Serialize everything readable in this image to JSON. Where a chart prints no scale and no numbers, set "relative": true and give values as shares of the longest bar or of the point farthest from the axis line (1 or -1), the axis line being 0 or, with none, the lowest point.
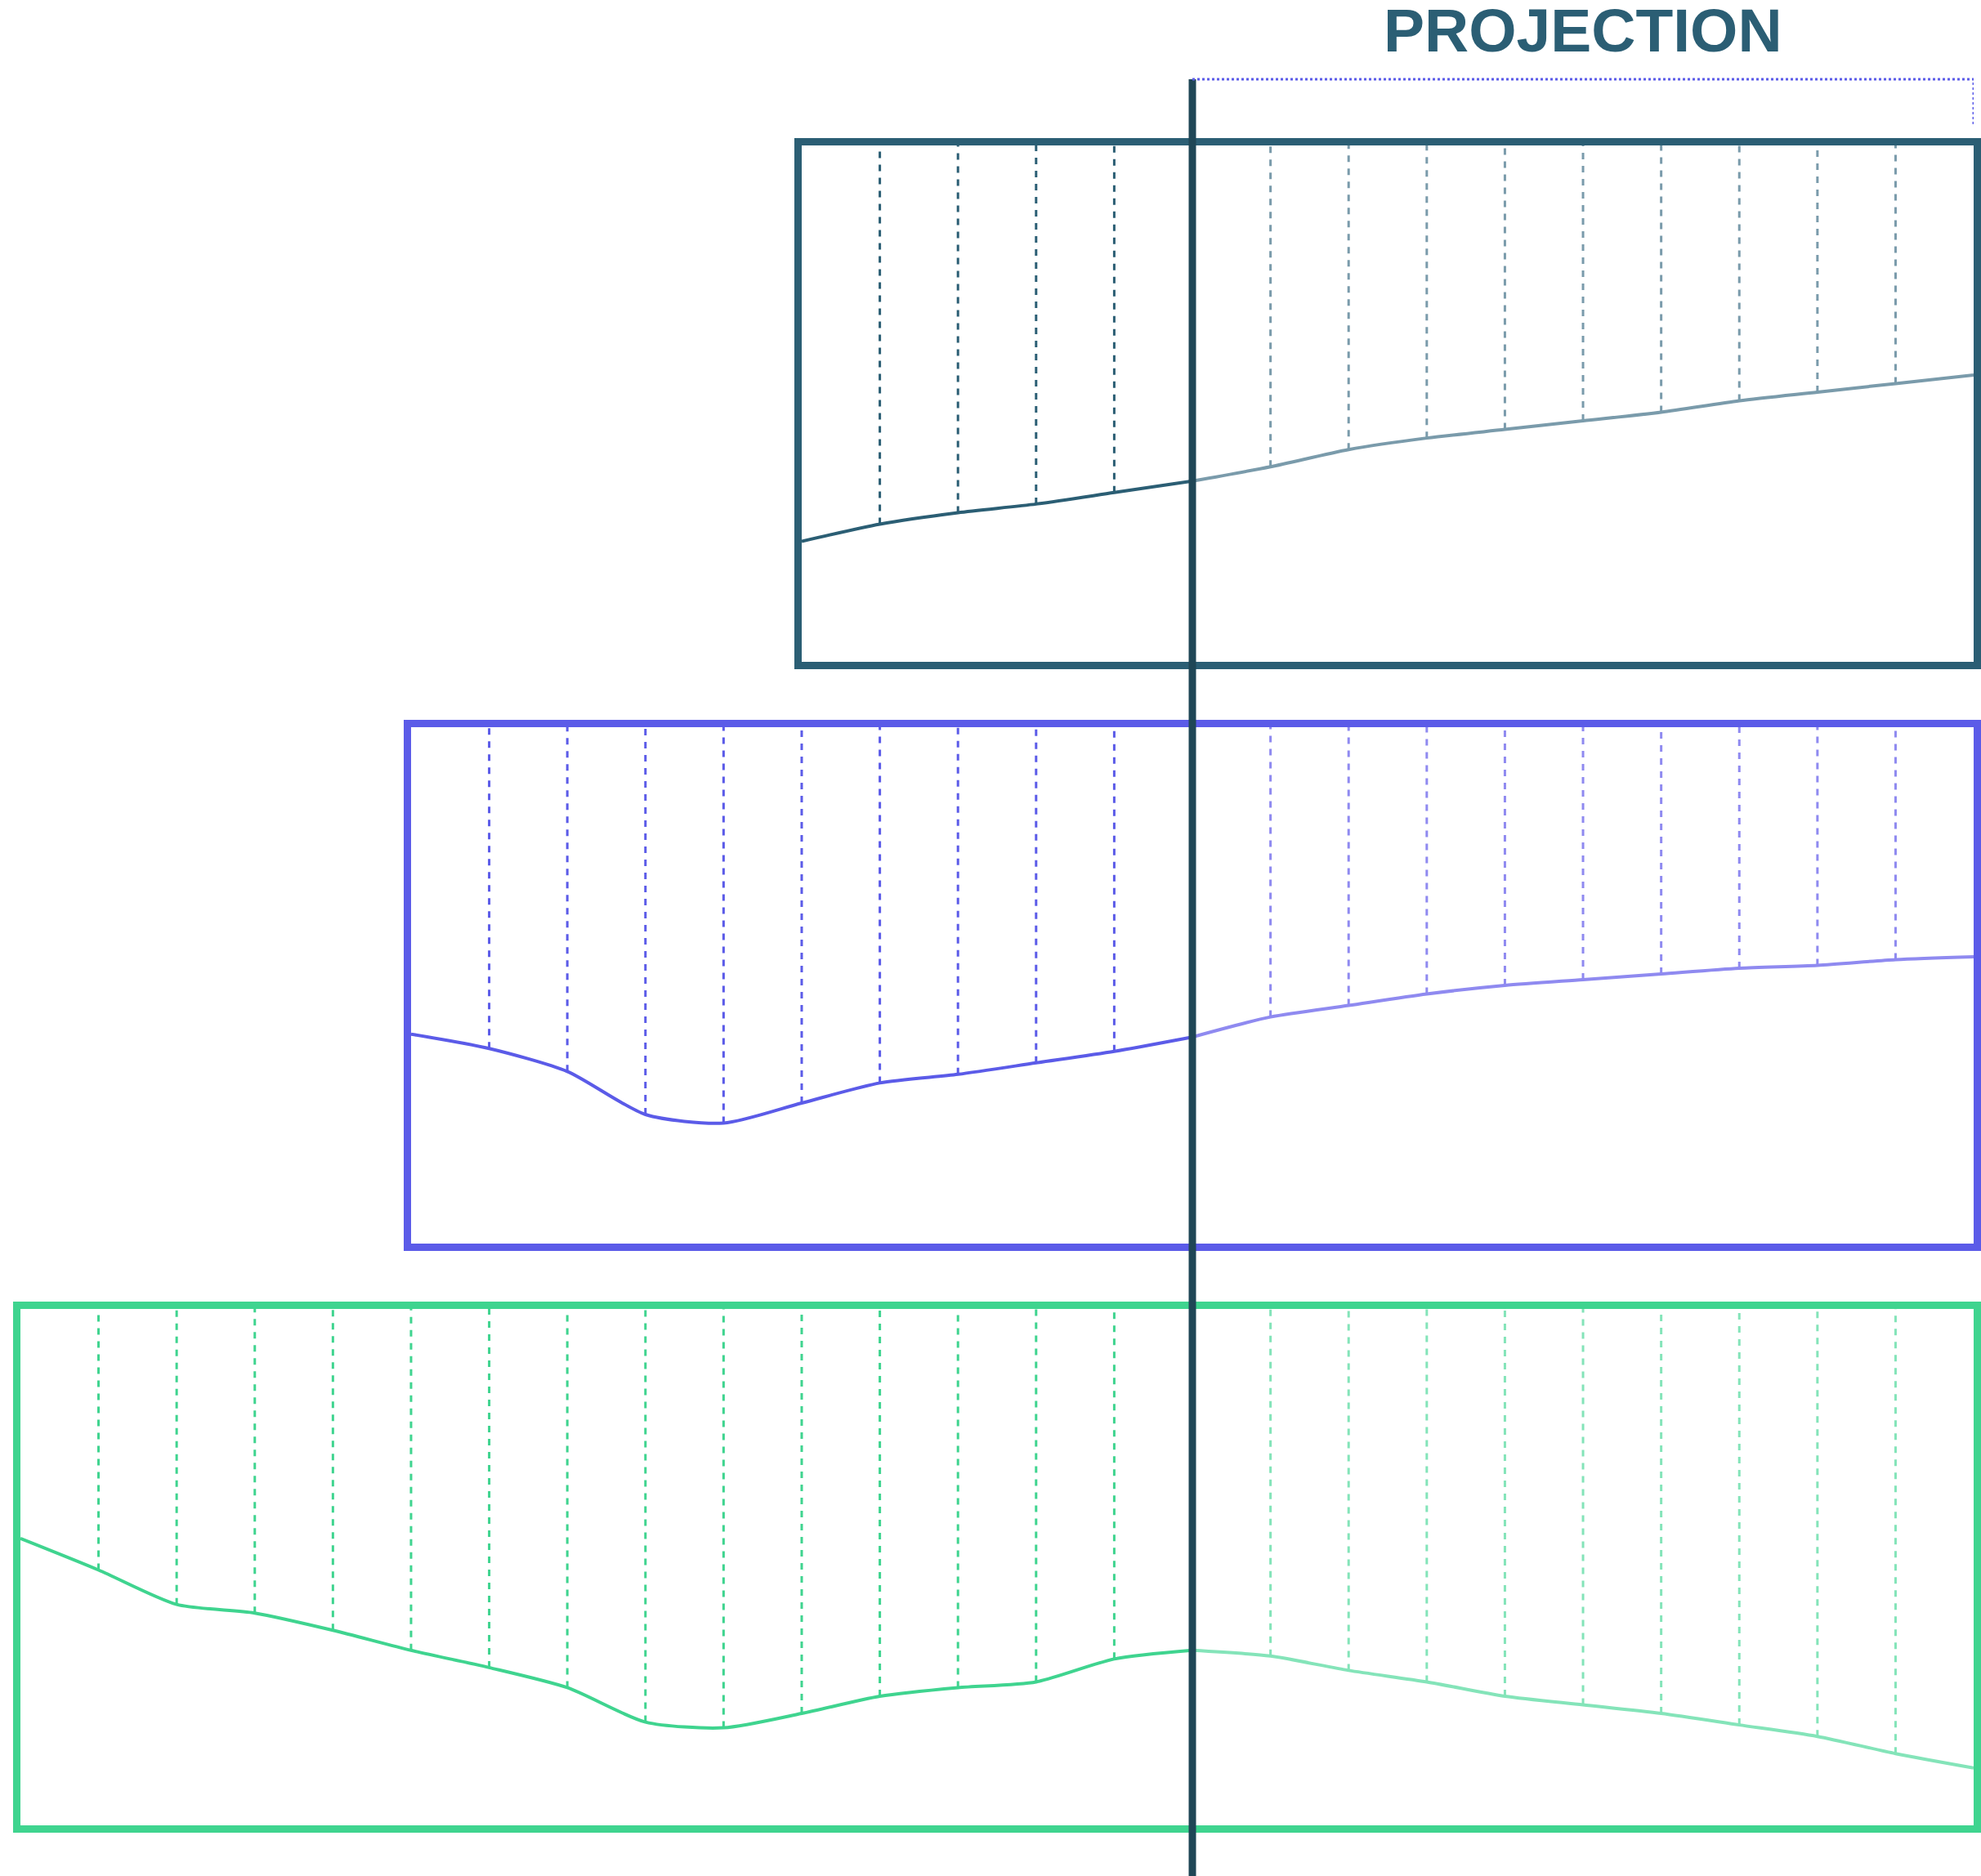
{
  "chart_data": [
    {
      "type": "line",
      "relative": true,
      "grid": "x",
      "title": "PROJECTION",
      "categories": [
        null,
        null,
        null,
        null,
        null,
        null,
        null,
        null,
        null,
        null,
        null,
        null,
        null,
        null,
        null,
        null
      ],
      "series": [
        {
          "color": "#2b5e74",
          "values": [
            0.42,
            0.48,
            0.52,
            0.55,
            0.59,
            0.63,
            null,
            null,
            null,
            null,
            null,
            null,
            null,
            null,
            null,
            null
          ]
        },
        {
          "color": "#7a9bab",
          "values": [
            null,
            null,
            null,
            null,
            null,
            0.63,
            0.68,
            0.74,
            0.78,
            0.81,
            0.84,
            0.87,
            0.91,
            0.94,
            0.97,
            1.0
          ]
        }
      ]
    },
    {
      "type": "line",
      "relative": true,
      "grid": "x",
      "categories": [
        null,
        null,
        null,
        null,
        null,
        null,
        null,
        null,
        null,
        null,
        null,
        null,
        null,
        null,
        null,
        null,
        null,
        null,
        null,
        null,
        null
      ],
      "series": [
        {
          "color": "#5b5be8",
          "values": [
            0.73,
            0.68,
            0.6,
            0.45,
            0.42,
            0.49,
            0.56,
            0.59,
            0.63,
            0.67,
            0.72,
            null,
            null,
            null,
            null,
            null,
            null,
            null,
            null,
            null,
            null
          ]
        },
        {
          "color": "#8f8af0",
          "values": [
            null,
            null,
            null,
            null,
            null,
            null,
            null,
            null,
            null,
            null,
            0.72,
            0.79,
            0.83,
            0.87,
            0.9,
            0.92,
            0.94,
            0.96,
            0.97,
            0.99,
            1.0
          ]
        }
      ]
    },
    {
      "type": "line",
      "relative": true,
      "grid": "x",
      "categories": [
        null,
        null,
        null,
        null,
        null,
        null,
        null,
        null,
        null,
        null,
        null,
        null,
        null,
        null,
        null,
        null,
        null,
        null,
        null,
        null,
        null,
        null,
        null,
        null,
        null,
        null
      ],
      "series": [
        {
          "color": "#3fd48f",
          "values": [
            1.0,
            0.89,
            0.77,
            0.74,
            0.68,
            0.61,
            0.55,
            0.48,
            0.36,
            0.34,
            0.39,
            0.45,
            0.48,
            0.5,
            0.58,
            0.61,
            null,
            null,
            null,
            null,
            null,
            null,
            null,
            null,
            null,
            null
          ]
        },
        {
          "color": "#84e4b9",
          "values": [
            null,
            null,
            null,
            null,
            null,
            null,
            null,
            null,
            null,
            null,
            null,
            null,
            null,
            null,
            null,
            0.61,
            0.59,
            0.54,
            0.5,
            0.45,
            0.42,
            0.39,
            0.35,
            0.31,
            0.25,
            0.2
          ]
        }
      ]
    }
  ]
}
